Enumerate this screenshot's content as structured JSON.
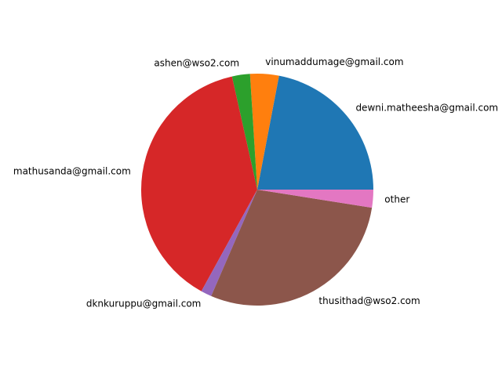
{
  "chart_data": {
    "type": "pie",
    "start_angle_deg": 0,
    "direction": "counterclockwise",
    "slices": [
      {
        "label": "dewni.matheesha@gmail.com",
        "value": 22.0,
        "color": "#1f77b4"
      },
      {
        "label": "vinumaddumage@gmail.com",
        "value": 4.0,
        "color": "#ff7f0e"
      },
      {
        "label": "ashen@wso2.com",
        "value": 2.5,
        "color": "#2ca02c"
      },
      {
        "label": "mathusanda@gmail.com",
        "value": 38.5,
        "color": "#d62728"
      },
      {
        "label": "dknkuruppu@gmail.com",
        "value": 1.5,
        "color": "#9467bd"
      },
      {
        "label": "thusithad@wso2.com",
        "value": 29.0,
        "color": "#8c564b"
      },
      {
        "label": "other",
        "value": 2.5,
        "color": "#e377c2"
      }
    ]
  }
}
